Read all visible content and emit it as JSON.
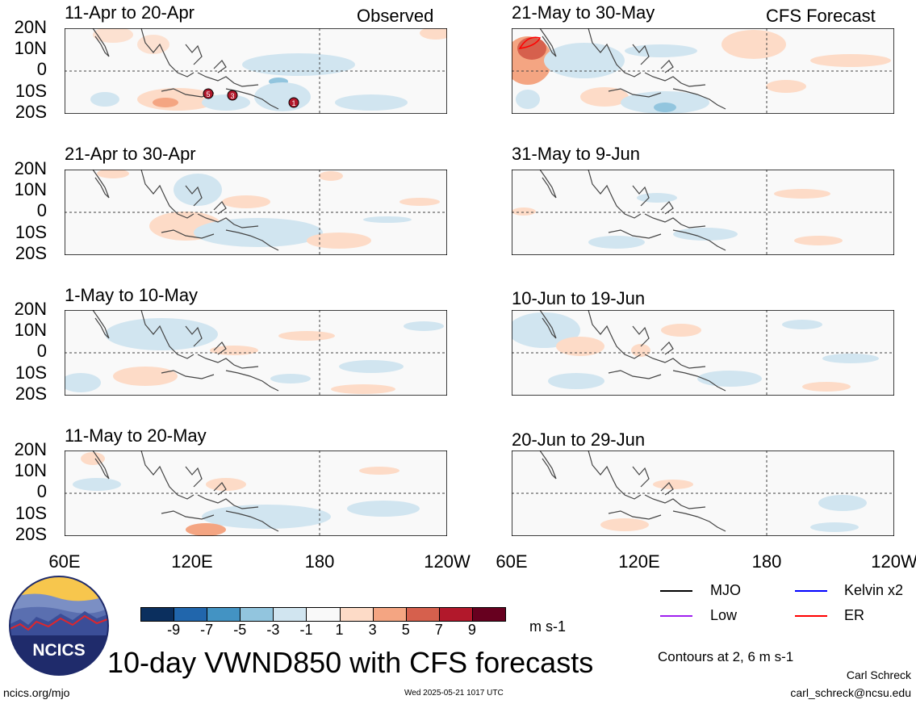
{
  "column_labels": {
    "observed": "Observed",
    "forecast": "CFS Forecast"
  },
  "lat_labels": [
    "20N",
    "10N",
    "0",
    "10S",
    "20S"
  ],
  "lon_labels": [
    "60E",
    "120E",
    "180",
    "120W"
  ],
  "panels_left": [
    {
      "title": "11-Apr to 20-Apr"
    },
    {
      "title": "21-Apr to 30-Apr"
    },
    {
      "title": "1-May to 10-May"
    },
    {
      "title": "11-May to 20-May"
    }
  ],
  "panels_right": [
    {
      "title": "21-May to 30-May"
    },
    {
      "title": "31-May to 9-Jun"
    },
    {
      "title": "10-Jun to 19-Jun"
    },
    {
      "title": "20-Jun to 29-Jun"
    }
  ],
  "phase_markers": [
    "5",
    "3",
    "1"
  ],
  "colorbar": {
    "ticks": [
      "-9",
      "-7",
      "-5",
      "-3",
      "-1",
      "1",
      "3",
      "5",
      "7",
      "9"
    ],
    "colors": [
      "#0b2f5e",
      "#2166ac",
      "#4393c3",
      "#92c5de",
      "#d1e5f0",
      "#f9f9f9",
      "#fddbc7",
      "#f4a582",
      "#d6604d",
      "#b2182b",
      "#67001f"
    ],
    "units": "m s-1"
  },
  "legend": {
    "mjo": "MJO",
    "mjo_color": "#000000",
    "kelvin": "Kelvin x2",
    "kelvin_color": "#0000ff",
    "low": "Low",
    "low_color": "#a020f0",
    "er": "ER",
    "er_color": "#ff0000"
  },
  "contours_note": "Contours at 2, 6 m s-1",
  "main_title": "10-day VWND850 with CFS forecasts",
  "logo_text": "NCICS",
  "url": "ncics.org/mjo",
  "timestamp": "Wed 2025-05-21 1017 UTC",
  "author": "Carl Schreck",
  "email": "carl_schreck@ncsu.edu"
}
